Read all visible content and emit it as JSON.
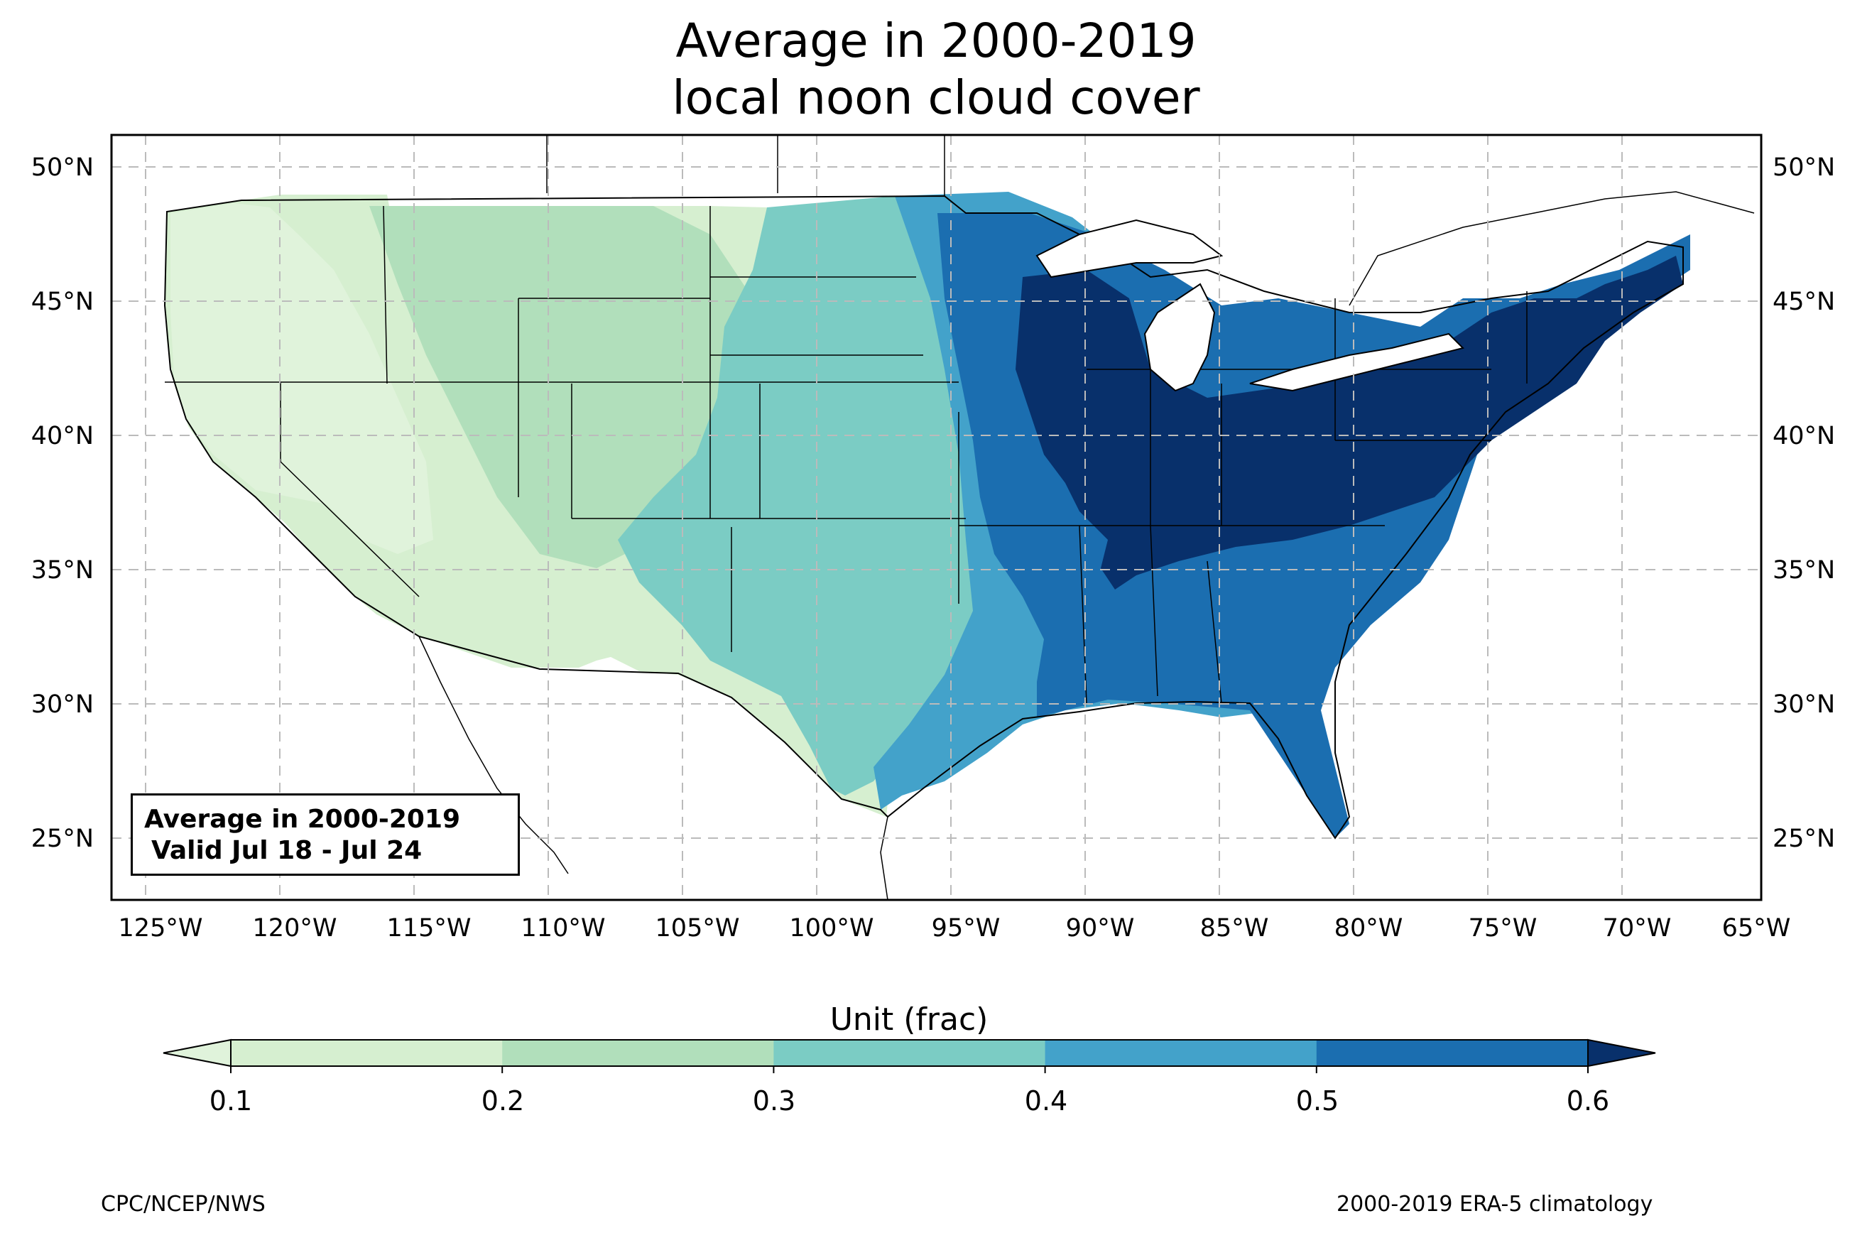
{
  "title": {
    "line1": "Average in 2000-2019",
    "line2": "local noon cloud cover"
  },
  "map": {
    "region": "Contiguous United States",
    "lon_range": [
      -126.3,
      -64.9
    ],
    "lat_range": [
      22.8,
      51.1
    ],
    "lon_ticks": [
      "125°W",
      "120°W",
      "115°W",
      "110°W",
      "105°W",
      "100°W",
      "95°W",
      "90°W",
      "85°W",
      "80°W",
      "75°W",
      "70°W",
      "65°W"
    ],
    "lat_ticks": [
      "50°N",
      "45°N",
      "40°N",
      "35°N",
      "30°N",
      "25°N"
    ],
    "grid": true,
    "valid_box": {
      "line1": "Average in 2000-2019",
      "line2": "Valid Jul 18 - Jul 24"
    }
  },
  "colorbar": {
    "label": "Unit (frac)",
    "ticks": [
      "0.1",
      "0.2",
      "0.3",
      "0.4",
      "0.5",
      "0.6"
    ],
    "colors": [
      "#e0f3db",
      "#d6efd0",
      "#b1dfbb",
      "#7bccc4",
      "#43a2ca",
      "#1b6eb0",
      "#08306b"
    ],
    "extend": "both"
  },
  "footer": {
    "left": "CPC/NCEP/NWS",
    "right": "2000-2019 ERA-5 climatology"
  }
}
